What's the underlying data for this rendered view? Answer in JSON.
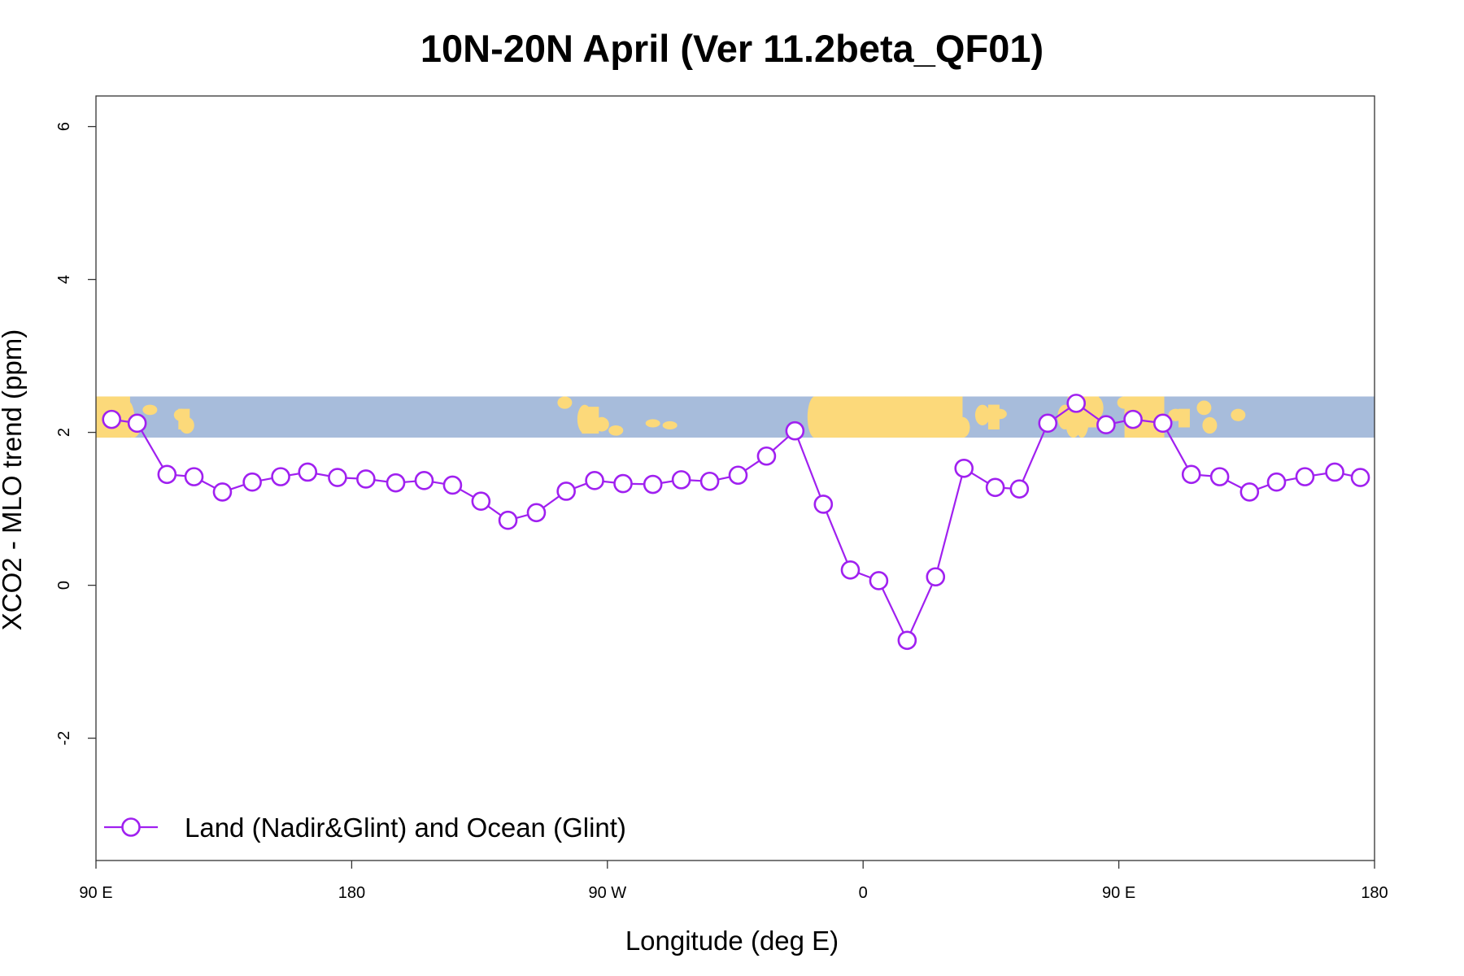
{
  "chart_data": {
    "type": "line",
    "title": "10N-20N April (Ver 11.2beta_QF01)",
    "xlabel": "Longitude (deg E)",
    "ylabel": "XCO2 - MLO trend (ppm)",
    "xlim": [
      90,
      540
    ],
    "ylim": [
      -3.6,
      6.4
    ],
    "x_ticks": [
      {
        "value": 90,
        "label": "90 E"
      },
      {
        "value": 180,
        "label": "180"
      },
      {
        "value": 270,
        "label": "90 W"
      },
      {
        "value": 360,
        "label": "0"
      },
      {
        "value": 450,
        "label": "90 E"
      },
      {
        "value": 540,
        "label": "180"
      }
    ],
    "y_ticks": [
      {
        "value": -2,
        "label": "-2"
      },
      {
        "value": 0,
        "label": "0"
      },
      {
        "value": 2,
        "label": "2"
      },
      {
        "value": 4,
        "label": "4"
      },
      {
        "value": 6,
        "label": "6"
      }
    ],
    "map_band": {
      "ymin": 1.93,
      "ymax": 2.47,
      "ocean_color": "#a7bcdb",
      "land_color": "#fcd97a"
    },
    "legend": {
      "position": "bottom-left",
      "label": "Land (Nadir&Glint) and Ocean (Glint)"
    },
    "series": [
      {
        "name": "Land (Nadir&Glint) and Ocean (Glint)",
        "color": "#a020f0",
        "marker": "open-circle",
        "x": [
          95.5,
          104.5,
          115,
          124.5,
          134.5,
          145,
          155,
          164.5,
          175,
          185,
          195.5,
          205.5,
          215.5,
          225.5,
          235,
          245,
          255.5,
          265.5,
          275.5,
          286,
          296,
          306,
          316,
          326,
          336,
          346,
          355.5,
          365.5,
          375.5,
          385.5,
          395.5,
          406.5,
          415,
          425,
          435,
          445.5,
          455,
          465.5,
          475.5,
          485.5,
          496,
          505.5,
          515.5,
          526,
          535
        ],
        "values": [
          2.17,
          2.12,
          1.45,
          1.42,
          1.22,
          1.35,
          1.42,
          1.48,
          1.41,
          1.39,
          1.34,
          1.37,
          1.31,
          1.1,
          0.85,
          0.95,
          1.23,
          1.37,
          1.33,
          1.32,
          1.38,
          1.36,
          1.44,
          1.69,
          2.02,
          1.06,
          0.2,
          0.06,
          -0.72,
          0.11,
          1.53,
          1.28,
          1.26,
          2.12,
          2.38,
          2.1,
          2.17,
          2.12,
          1.45,
          1.42,
          1.22,
          1.35,
          1.42,
          1.48,
          1.41
        ]
      }
    ]
  }
}
